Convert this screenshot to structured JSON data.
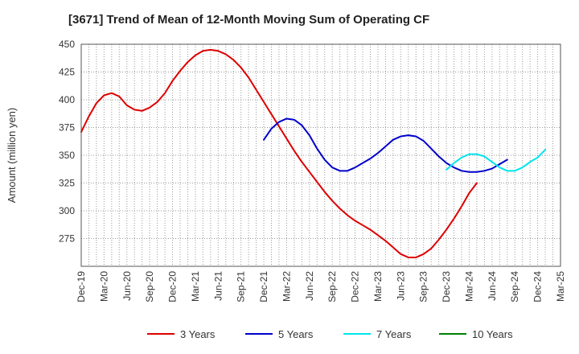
{
  "chart_data": {
    "type": "line",
    "title": "[3671]  Trend of Mean of 12-Month Moving Sum of Operating CF",
    "xlabel": "",
    "ylabel": "Amount (million yen)",
    "ylim": [
      250,
      450
    ],
    "yticks": [
      275,
      300,
      325,
      350,
      375,
      400,
      425,
      450
    ],
    "x_start": "Dec-19",
    "x_ticks": [
      "Dec-19",
      "Mar-20",
      "Jun-20",
      "Sep-20",
      "Dec-20",
      "Mar-21",
      "Jun-21",
      "Sep-21",
      "Dec-21",
      "Mar-22",
      "Jun-22",
      "Sep-22",
      "Dec-22",
      "Mar-23",
      "Jun-23",
      "Sep-23",
      "Dec-23",
      "Mar-24",
      "Jun-24",
      "Sep-24",
      "Dec-24",
      "Mar-25"
    ],
    "grid": true,
    "legend_position": "bottom",
    "series": [
      {
        "name": "3 Years",
        "color": "#dd0000",
        "start_month_index": 0,
        "values": [
          371,
          385,
          397,
          404,
          406,
          403,
          395,
          391,
          390,
          393,
          398,
          406,
          417,
          426,
          434,
          440,
          444,
          445,
          444,
          441,
          436,
          429,
          420,
          409,
          398,
          387,
          376,
          365,
          354,
          344,
          335,
          326,
          317,
          309,
          302,
          296,
          291,
          287,
          283,
          278,
          273,
          267,
          261,
          258,
          258,
          261,
          266,
          274,
          283,
          293,
          304,
          316,
          325
        ]
      },
      {
        "name": "5 Years",
        "color": "#0000cc",
        "start_month_index": 24,
        "values": [
          364,
          374,
          380,
          383,
          382,
          377,
          368,
          356,
          346,
          339,
          336,
          336,
          339,
          343,
          347,
          352,
          358,
          364,
          367,
          368,
          367,
          363,
          356,
          349,
          343,
          339,
          336,
          335,
          335,
          336,
          338,
          342,
          346
        ]
      },
      {
        "name": "7 Years",
        "color": "#00e5ee",
        "start_month_index": 48,
        "values": [
          337,
          343,
          348,
          351,
          351,
          349,
          344,
          339,
          336,
          336,
          339,
          344,
          348,
          355
        ]
      },
      {
        "name": "10 Years",
        "color": "#008000",
        "start_month_index": 0,
        "values": []
      }
    ]
  }
}
